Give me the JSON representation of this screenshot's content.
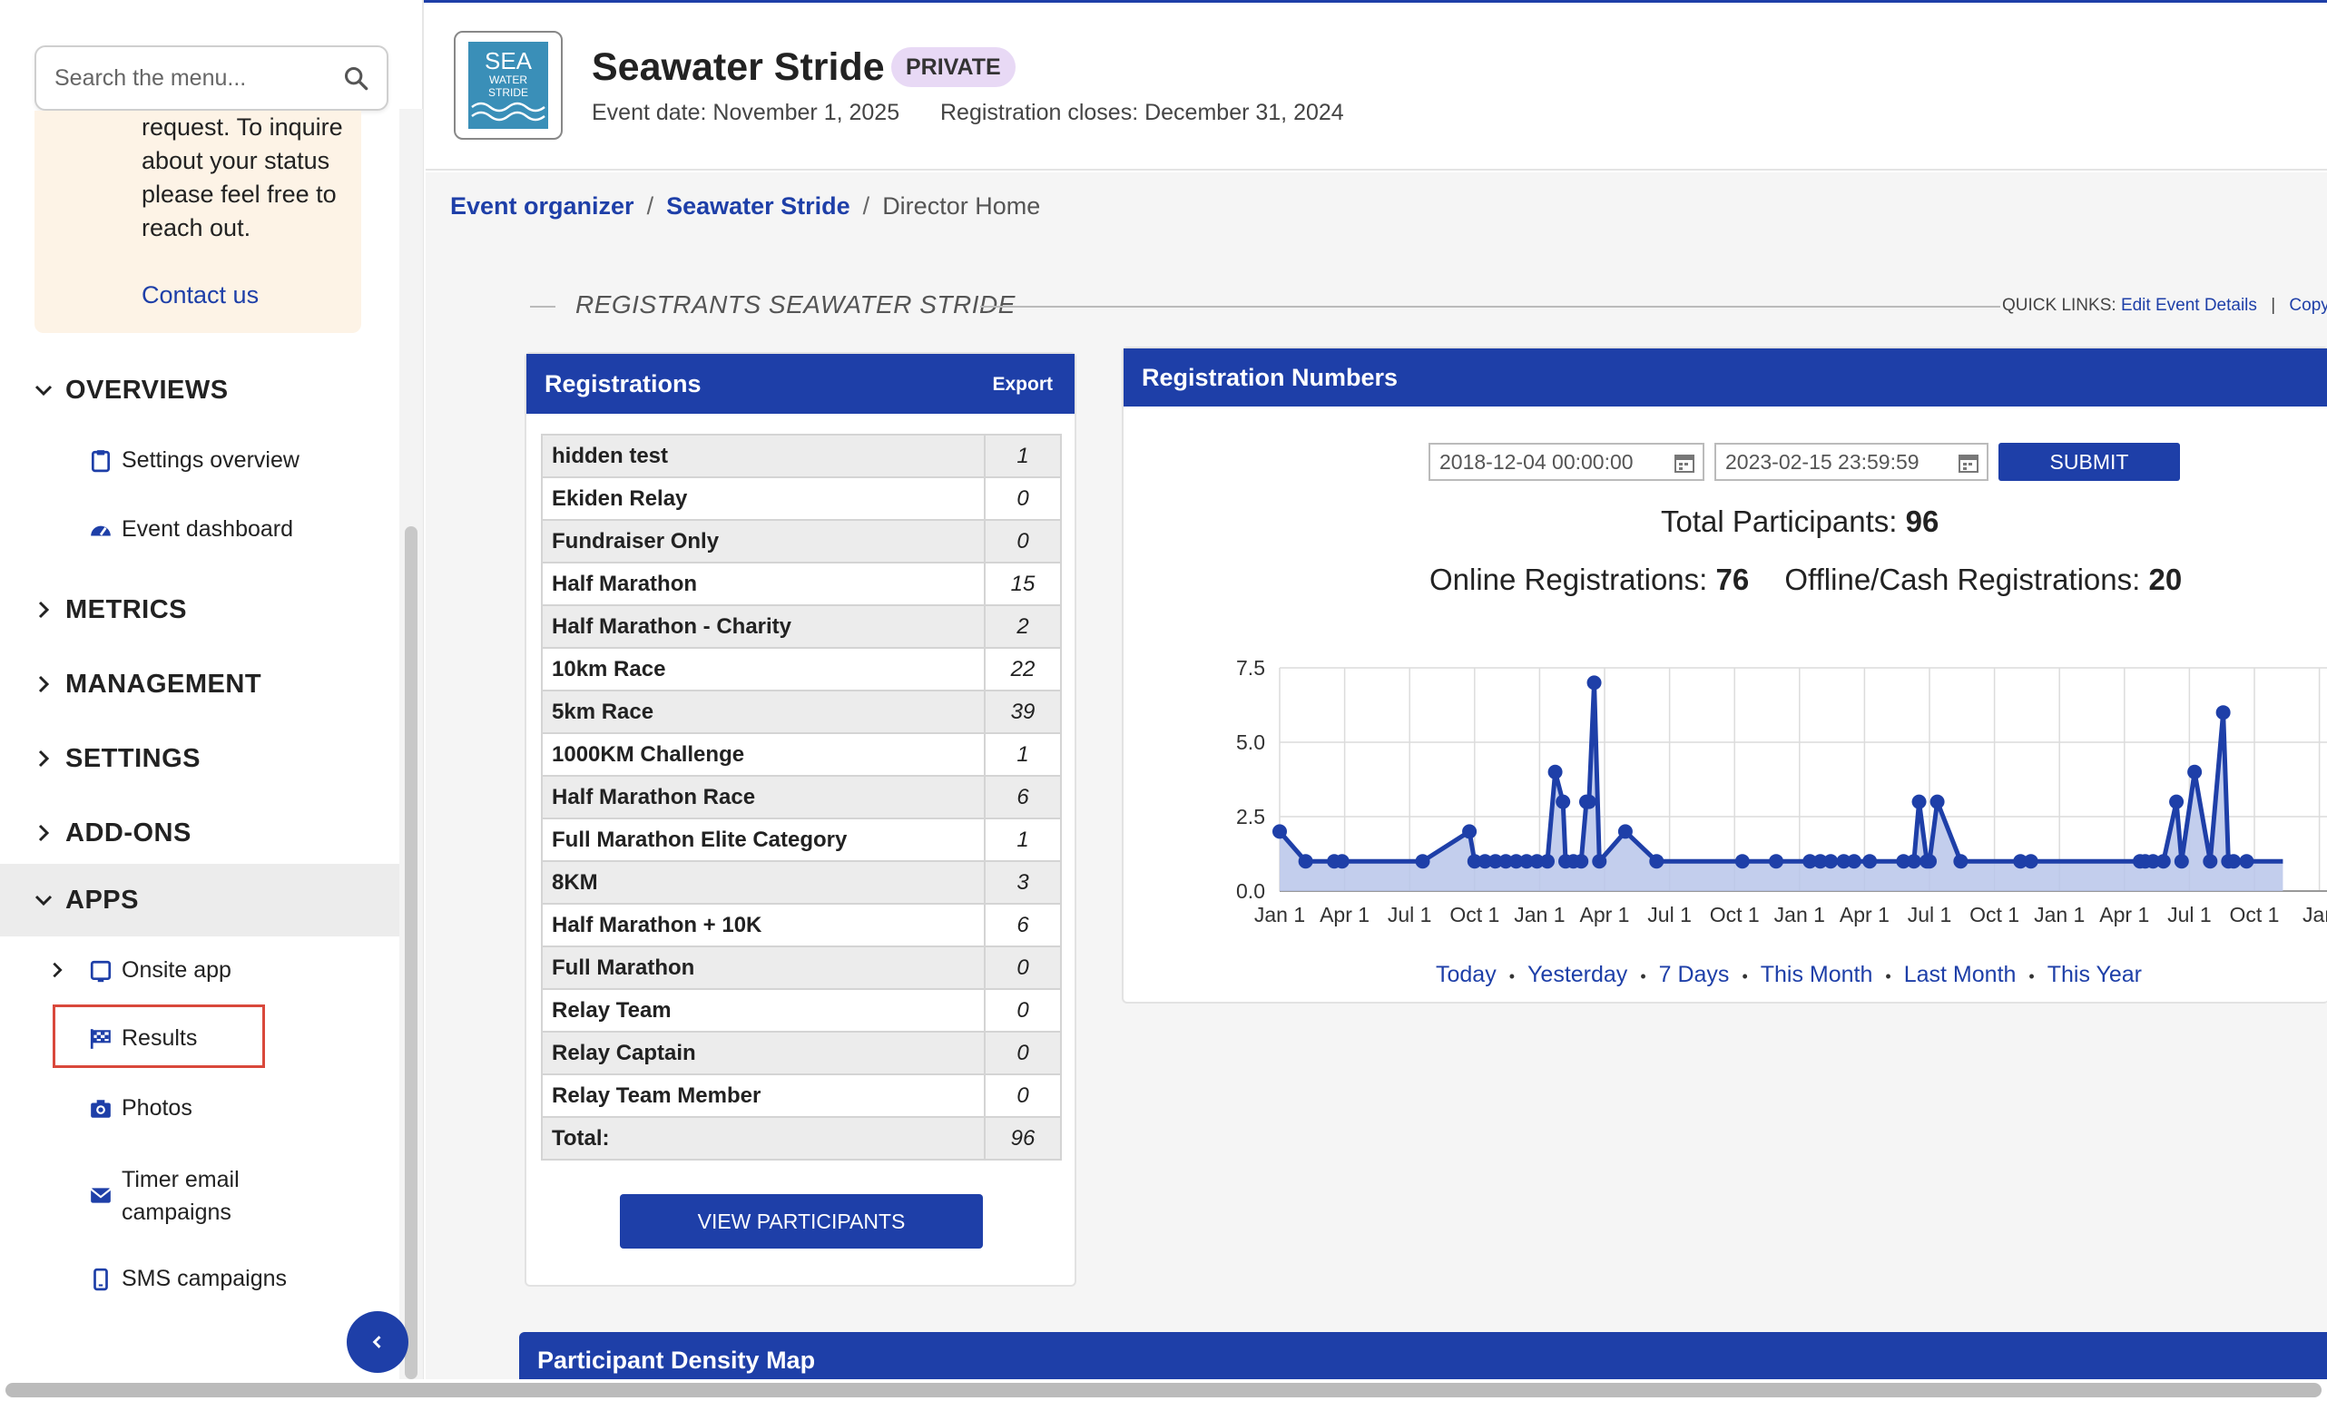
{
  "sidebar": {
    "search_placeholder": "Search the menu...",
    "notice_text": "request. To inquire about your status please feel free to reach out.",
    "notice_link": "Contact us",
    "sections": {
      "overviews": "OVERVIEWS",
      "metrics": "METRICS",
      "management": "MANAGEMENT",
      "settings": "SETTINGS",
      "addons": "ADD-ONS",
      "apps": "APPS"
    },
    "overview_items": {
      "settings_overview": "Settings overview",
      "event_dashboard": "Event dashboard"
    },
    "apps_items": {
      "onsite_app": "Onsite app",
      "results": "Results",
      "photos": "Photos",
      "timer_email": "Timer email campaigns",
      "sms": "SMS campaigns"
    }
  },
  "header": {
    "logo_text": "SEA WATER STRIDE",
    "title": "Seawater Stride",
    "badge": "PRIVATE",
    "event_date": "Event date: November 1, 2025",
    "registration_closes": "Registration closes: December 31, 2024"
  },
  "breadcrumb": {
    "item1": "Event organizer",
    "item2": "Seawater Stride",
    "current": "Director Home",
    "separator": "/"
  },
  "section_title": "REGISTRANTS SEAWATER STRIDE",
  "quick_links": {
    "label": "QUICK LINKS:",
    "edit": "Edit Event Details",
    "divider": "|",
    "copy": "Copy"
  },
  "registrations": {
    "title": "Registrations",
    "export": "Export",
    "rows": [
      {
        "name": "hidden test",
        "count": "1"
      },
      {
        "name": "Ekiden Relay",
        "count": "0"
      },
      {
        "name": "Fundraiser Only",
        "count": "0"
      },
      {
        "name": "Half Marathon",
        "count": "15"
      },
      {
        "name": "Half Marathon - Charity",
        "count": "2"
      },
      {
        "name": "10km Race",
        "count": "22"
      },
      {
        "name": "5km Race",
        "count": "39"
      },
      {
        "name": "1000KM Challenge",
        "count": "1"
      },
      {
        "name": "Half Marathon Race",
        "count": "6"
      },
      {
        "name": "Full Marathon Elite Category",
        "count": "1"
      },
      {
        "name": "8KM",
        "count": "3"
      },
      {
        "name": "Half Marathon + 10K",
        "count": "6"
      },
      {
        "name": "Full Marathon",
        "count": "0"
      },
      {
        "name": "Relay Team",
        "count": "0"
      },
      {
        "name": "Relay Captain",
        "count": "0"
      },
      {
        "name": "Relay Team Member",
        "count": "0"
      },
      {
        "name": "Total:",
        "count": "96"
      }
    ],
    "view_button": "VIEW PARTICIPANTS"
  },
  "reg_numbers": {
    "title": "Registration Numbers",
    "start_date": "2018-12-04 00:00:00",
    "end_date": "2023-02-15 23:59:59",
    "submit": "SUBMIT",
    "total_label": "Total Participants:",
    "total_value": "96",
    "online_label": "Online Registrations:",
    "online_value": "76",
    "offline_label": "Offline/Cash Registrations:",
    "offline_value": "20",
    "ranges": [
      "Today",
      "Yesterday",
      "7 Days",
      "This Month",
      "Last Month",
      "This Year"
    ]
  },
  "density_map": {
    "title": "Participant Density Map"
  },
  "colors": {
    "brand": "#1e3fa8",
    "badge_bg": "#e8d9f5",
    "notice_bg": "#fdf3e6",
    "highlight_border": "#d9483b",
    "chart_fill": "#b8c6ea"
  },
  "chart_data": {
    "type": "area",
    "title": "",
    "xlabel": "",
    "ylabel": "",
    "ylim": [
      0,
      7.5
    ],
    "yticks": [
      "0.0",
      "2.5",
      "5.0",
      "7.5"
    ],
    "xticks": [
      "Jan 1",
      "Apr 1",
      "Jul 1",
      "Oct 1",
      "Jan 1",
      "Apr 1",
      "Jul 1",
      "Oct 1",
      "Jan 1",
      "Apr 1",
      "Jul 1",
      "Oct 1",
      "Jan 1",
      "Apr 1",
      "Jul 1",
      "Oct 1",
      "Jan"
    ],
    "grid": true,
    "series": [
      {
        "x": [
          0.0,
          0.1,
          0.21,
          0.24,
          0.55,
          0.73,
          0.75,
          0.79,
          0.83,
          0.87,
          0.91,
          0.95,
          0.99,
          1.03,
          1.06,
          1.09,
          1.1,
          1.13,
          1.16,
          1.18,
          1.19,
          1.21,
          1.23,
          1.33,
          1.45,
          1.78,
          1.91,
          2.04,
          2.08,
          2.12,
          2.17,
          2.21,
          2.27,
          2.4,
          2.44,
          2.46,
          2.49,
          2.5,
          2.53,
          2.62,
          2.85,
          2.89,
          3.31,
          3.33,
          3.36,
          3.4,
          3.45,
          3.47,
          3.52,
          3.58,
          3.63,
          3.65,
          3.67,
          3.72
        ],
        "y": [
          2,
          1,
          1,
          1,
          1,
          2,
          1,
          1,
          1,
          1,
          1,
          1,
          1,
          1,
          4,
          3,
          1,
          1,
          1,
          3,
          3,
          7,
          1,
          2,
          1,
          1,
          1,
          1,
          1,
          1,
          1,
          1,
          1,
          1,
          1,
          3,
          1,
          1,
          3,
          1,
          1,
          1,
          1,
          1,
          1,
          1,
          3,
          1,
          4,
          1,
          6,
          1,
          1,
          1
        ]
      }
    ]
  }
}
